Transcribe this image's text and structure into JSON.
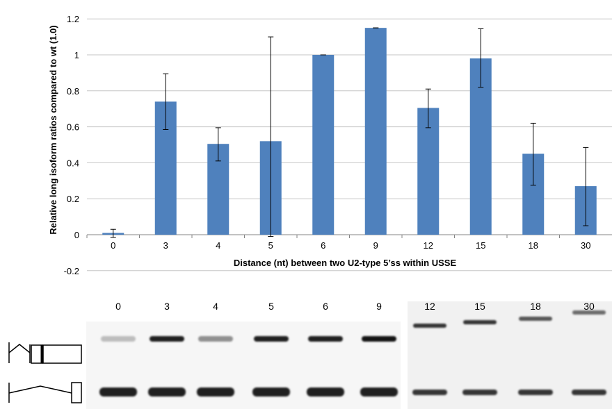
{
  "chart_data": {
    "type": "bar",
    "categories": [
      "0",
      "3",
      "4",
      "5",
      "6",
      "9",
      "12",
      "15",
      "18",
      "30"
    ],
    "values": [
      0.01,
      0.74,
      0.505,
      0.52,
      1.0,
      1.15,
      0.705,
      0.98,
      0.45,
      0.27
    ],
    "error_bars": [
      [
        -0.015,
        0.03
      ],
      [
        0.585,
        0.895
      ],
      [
        0.41,
        0.595
      ],
      [
        -0.01,
        1.1
      ],
      [
        1.0,
        1.0
      ],
      [
        1.15,
        1.15
      ],
      [
        0.595,
        0.81
      ],
      [
        0.82,
        1.145
      ],
      [
        0.275,
        0.62
      ],
      [
        0.05,
        0.485
      ]
    ],
    "y_ticks": [
      "-0.2",
      "0",
      "0.2",
      "0.4",
      "0.6",
      "0.8",
      "1",
      "1.2"
    ],
    "ylim": [
      -0.2,
      1.2
    ],
    "xlabel": "Distance (nt) between two U2-type 5’ss within USSE",
    "ylabel": "Relative long isoform ratios compared to wt (1.0)",
    "bar_color": "#4f81bd",
    "grid": true
  },
  "gel": {
    "left_lanes": [
      "0",
      "3",
      "4",
      "5",
      "6",
      "9"
    ],
    "right_lanes": [
      "12",
      "15",
      "18",
      "30"
    ],
    "left_upper_intensity": [
      0.25,
      0.95,
      0.45,
      0.95,
      0.95,
      1.0
    ],
    "right_upper_intensity": [
      0.85,
      0.85,
      0.7,
      0.6
    ]
  }
}
